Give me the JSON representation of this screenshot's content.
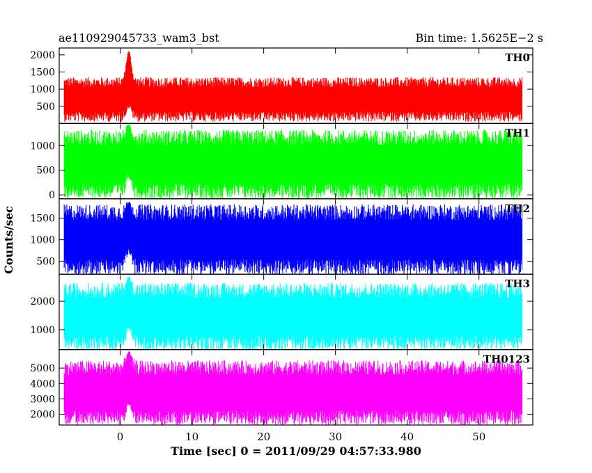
{
  "header": {
    "left": "ae110929045733_wam3_bst",
    "right": "Bin time: 1.5625E−2 s"
  },
  "chart_data": {
    "type": "line",
    "title": "ae110929045733_wam3_bst",
    "bin_time": "1.5625E−2 s",
    "xlabel": "Time [sec] 0 = 2011/09/29 04:57:33.980",
    "ylabel": "Counts/sec",
    "xlim": [
      -8.5,
      57.5
    ],
    "x_ticks": [
      0,
      10,
      20,
      30,
      40,
      50
    ],
    "x_start": -7.8,
    "x_end": 56,
    "burst_peak_time": 1.2,
    "grid": false,
    "panels": [
      {
        "name": "TH0",
        "color": "#ff0000",
        "ylim": [
          0,
          2200
        ],
        "y_ticks": [
          500,
          1000,
          1500,
          2000
        ],
        "baseline_mean": 700,
        "noise_min": 150,
        "noise_max": 1450,
        "burst_peak": 2200
      },
      {
        "name": "TH1",
        "color": "#00ff00",
        "ylim": [
          -80,
          1450
        ],
        "y_ticks": [
          0,
          500,
          1000
        ],
        "baseline_mean": 620,
        "noise_min": 0,
        "noise_max": 1400,
        "burst_peak": 1450
      },
      {
        "name": "TH2",
        "color": "#0000ff",
        "ylim": [
          200,
          1950
        ],
        "y_ticks": [
          500,
          1000,
          1500
        ],
        "baseline_mean": 1000,
        "noise_min": 250,
        "noise_max": 1900,
        "burst_peak": 1900
      },
      {
        "name": "TH3",
        "color": "#00ffff",
        "ylim": [
          300,
          2950
        ],
        "y_ticks": [
          1000,
          2000
        ],
        "baseline_mean": 1450,
        "noise_min": 450,
        "noise_max": 2850,
        "burst_peak": 2900
      },
      {
        "name": "TH0123",
        "color": "#ff00ff",
        "ylim": [
          1300,
          6200
        ],
        "y_ticks": [
          2000,
          3000,
          4000,
          5000
        ],
        "baseline_mean": 3400,
        "noise_min": 1600,
        "noise_max": 5800,
        "burst_peak": 6200
      }
    ]
  }
}
